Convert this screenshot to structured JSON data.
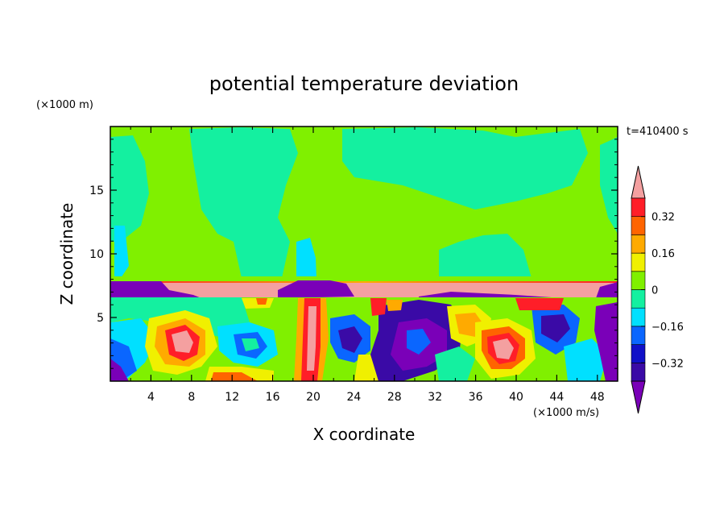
{
  "chart_data": {
    "type": "heatmap",
    "title": "potential temperature deviation",
    "xlabel": "X coordinate",
    "ylabel": "Z coordinate",
    "x_unit": "(×1000 m/s)",
    "y_unit": "(×1000 m)",
    "time_label": "t=410400 s",
    "xlim": [
      0,
      50
    ],
    "ylim": [
      0,
      20
    ],
    "x_ticks": [
      4,
      8,
      12,
      16,
      20,
      24,
      28,
      32,
      36,
      40,
      44,
      48
    ],
    "y_ticks": [
      5,
      10,
      15
    ],
    "colorbar": {
      "ticks": [
        0.32,
        0.16,
        0,
        -0.16,
        -0.32
      ],
      "tick_labels": [
        "0.32",
        "0.16",
        "0",
        "−0.16",
        "−0.32"
      ],
      "levels": [
        -0.4,
        -0.32,
        -0.24,
        -0.16,
        -0.08,
        0,
        0.08,
        0.16,
        0.24,
        0.32,
        0.4
      ],
      "colors": [
        "#7a00b8",
        "#3a0aa6",
        "#1010c8",
        "#0a66ff",
        "#00e0ff",
        "#14f0a0",
        "#80f000",
        "#f0f000",
        "#ffaa00",
        "#ff6400",
        "#ff1e28",
        "#f4a0a0"
      ]
    },
    "layers": [
      {
        "z_range": [
          7.8,
          20
        ],
        "value": 0.04,
        "note_color": "#80f000"
      },
      {
        "z_range": [
          7.2,
          7.8
        ],
        "value": 0.45,
        "note_color": "#f4a0a0"
      },
      {
        "z_range": [
          0,
          6.5
        ],
        "value": "turbulent"
      }
    ]
  }
}
